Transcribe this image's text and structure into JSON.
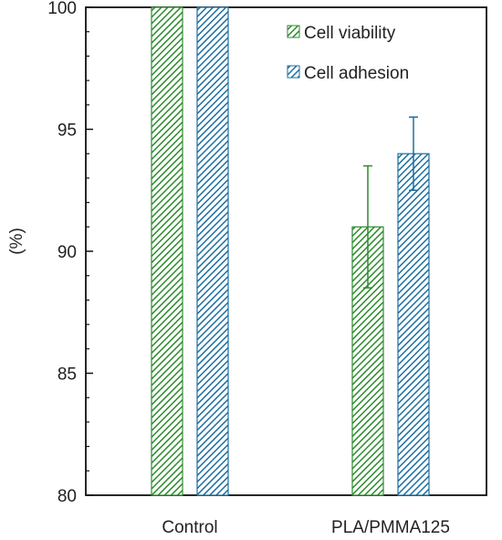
{
  "chart_data": {
    "type": "bar",
    "title": "",
    "xlabel": "",
    "ylabel": "(%)",
    "ylim": [
      80,
      100
    ],
    "yticks": [
      80,
      85,
      90,
      95,
      100
    ],
    "categories": [
      "Control",
      "PLA/PMMA125"
    ],
    "series": [
      {
        "name": "Cell viability",
        "values": [
          100,
          91
        ],
        "errors": [
          0,
          2.5
        ],
        "color": "#2e8b2e"
      },
      {
        "name": "Cell adhesion",
        "values": [
          100,
          94
        ],
        "errors": [
          0,
          1.5
        ],
        "color": "#1e6f9f"
      }
    ],
    "legend": "top-right",
    "grid": false
  }
}
